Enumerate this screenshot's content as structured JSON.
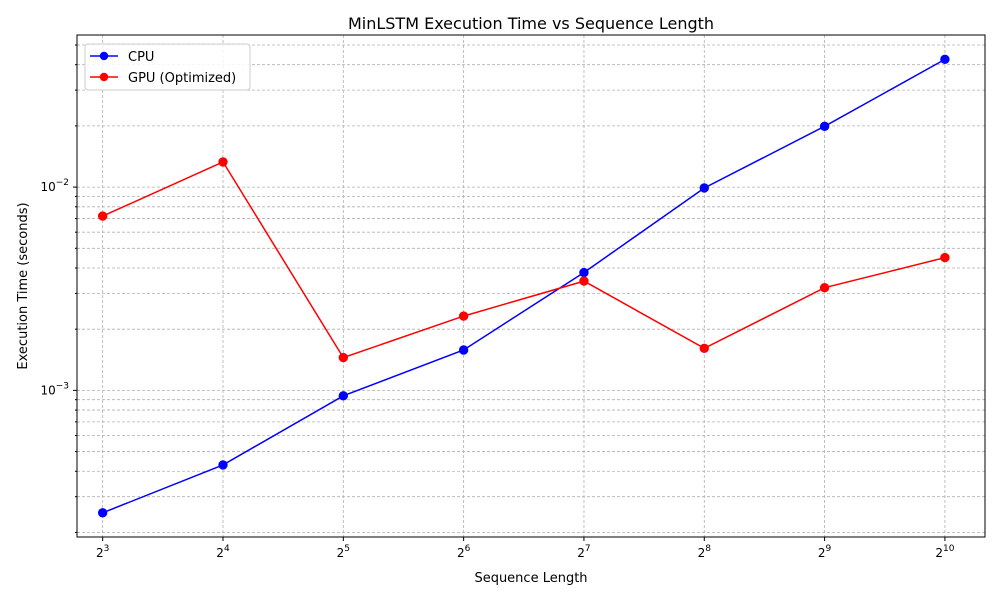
{
  "chart_data": {
    "type": "line",
    "title": "MinLSTM Execution Time vs Sequence Length",
    "xlabel": "Sequence Length",
    "ylabel": "Execution Time (seconds)",
    "xscale": "log2",
    "yscale": "log10",
    "x": [
      8,
      16,
      32,
      64,
      128,
      256,
      512,
      1024
    ],
    "x_tick_labels": [
      {
        "base": "2",
        "exp": "3"
      },
      {
        "base": "2",
        "exp": "4"
      },
      {
        "base": "2",
        "exp": "5"
      },
      {
        "base": "2",
        "exp": "6"
      },
      {
        "base": "2",
        "exp": "7"
      },
      {
        "base": "2",
        "exp": "8"
      },
      {
        "base": "2",
        "exp": "9"
      },
      {
        "base": "2",
        "exp": "10"
      }
    ],
    "y_tick_labels": [
      {
        "value": 0.001,
        "base": "10",
        "exp": "−3"
      },
      {
        "value": 0.01,
        "base": "10",
        "exp": "−2"
      }
    ],
    "xlim": [
      6.9,
      1290
    ],
    "ylim": [
      0.00019,
      0.056
    ],
    "grid": true,
    "grid_style": "dashed",
    "legend_position": "upper-left",
    "series": [
      {
        "name": "CPU",
        "color": "#0000ff",
        "marker": "circle",
        "values": [
          0.00025,
          0.00043,
          0.00094,
          0.00158,
          0.0038,
          0.0099,
          0.0199,
          0.0425
        ]
      },
      {
        "name": "GPU (Optimized)",
        "color": "#ff0000",
        "marker": "circle",
        "values": [
          0.0072,
          0.0133,
          0.00145,
          0.00232,
          0.00345,
          0.00161,
          0.0032,
          0.0045
        ]
      }
    ]
  }
}
